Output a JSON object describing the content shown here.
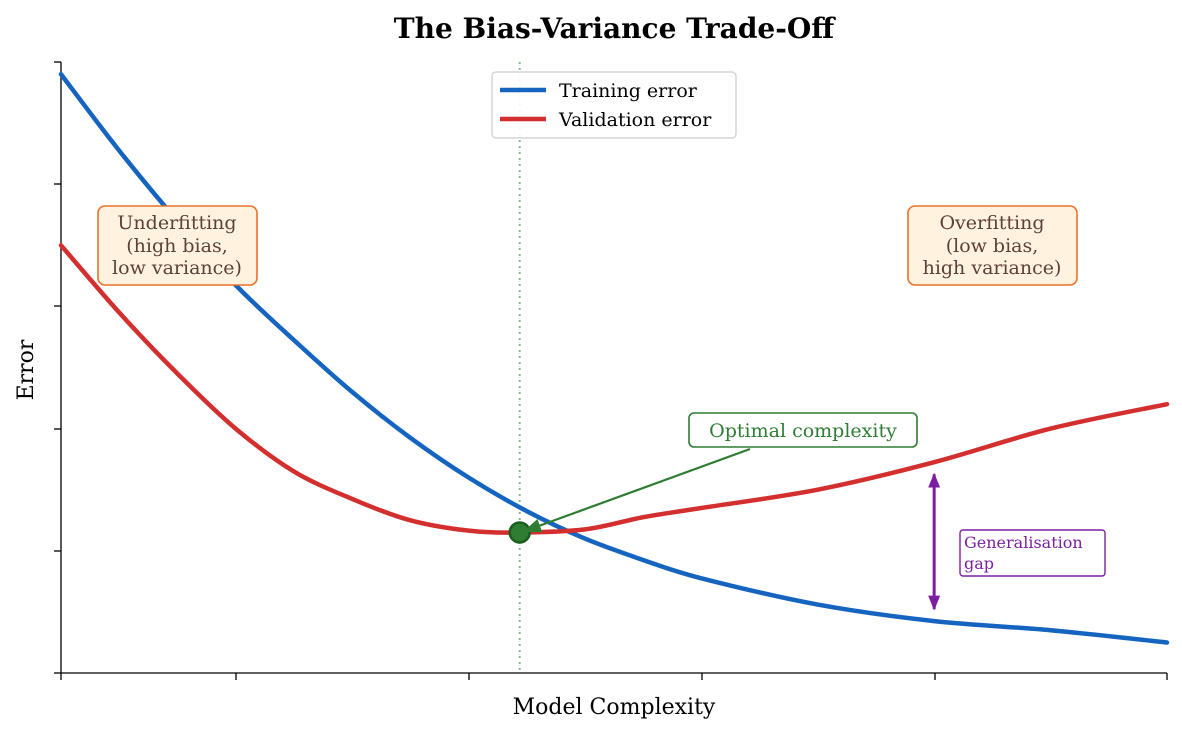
{
  "chart_data": {
    "type": "line",
    "title": "The Bias-Variance Trade-Off",
    "xlabel": "Model Complexity",
    "ylabel": "Error",
    "xlim": [
      0.5,
      10
    ],
    "ylim": [
      0,
      10
    ],
    "x_tick_labels_shown": false,
    "y_tick_labels_shown": false,
    "legend_position": "top-center",
    "series": [
      {
        "name": "Training error",
        "color": "#1565c0",
        "x": [
          0.5,
          1.0,
          1.5,
          2.0,
          2.5,
          3.0,
          3.5,
          4.0,
          4.5,
          5.0,
          5.5,
          6.0,
          7.0,
          8.0,
          9.0,
          10.0
        ],
        "y": [
          9.8,
          8.55,
          7.4,
          6.35,
          5.45,
          4.6,
          3.85,
          3.2,
          2.65,
          2.2,
          1.85,
          1.55,
          1.12,
          0.85,
          0.7,
          0.5
        ]
      },
      {
        "name": "Validation error",
        "color": "#d32f2f",
        "x": [
          0.5,
          1.0,
          1.5,
          2.0,
          2.5,
          3.0,
          3.5,
          4.0,
          4.44,
          5.0,
          5.5,
          6.0,
          7.0,
          8.0,
          9.0,
          10.0
        ],
        "y": [
          7.0,
          5.9,
          4.9,
          4.0,
          3.3,
          2.85,
          2.5,
          2.33,
          2.3,
          2.35,
          2.55,
          2.7,
          3.0,
          3.45,
          4.0,
          4.4
        ]
      }
    ],
    "optimal_point": {
      "x": 4.44,
      "y": 2.3,
      "color": "#2e7d32"
    },
    "annotations": {
      "underfitting": [
        "Underfitting",
        "(high bias,",
        "low variance)"
      ],
      "overfitting": [
        "Overfitting",
        "(low bias,",
        "high variance)"
      ],
      "optimal_label": "Optimal complexity",
      "gap_label": [
        "Generalisation",
        "gap"
      ],
      "gap_x": 8.0,
      "colors": {
        "regime_box_fill": "#fff3e0",
        "regime_box_border": "#e8722a",
        "regime_text": "#5d4037",
        "optimal": "#2e7d32",
        "gap": "#7b1fa2"
      }
    }
  }
}
